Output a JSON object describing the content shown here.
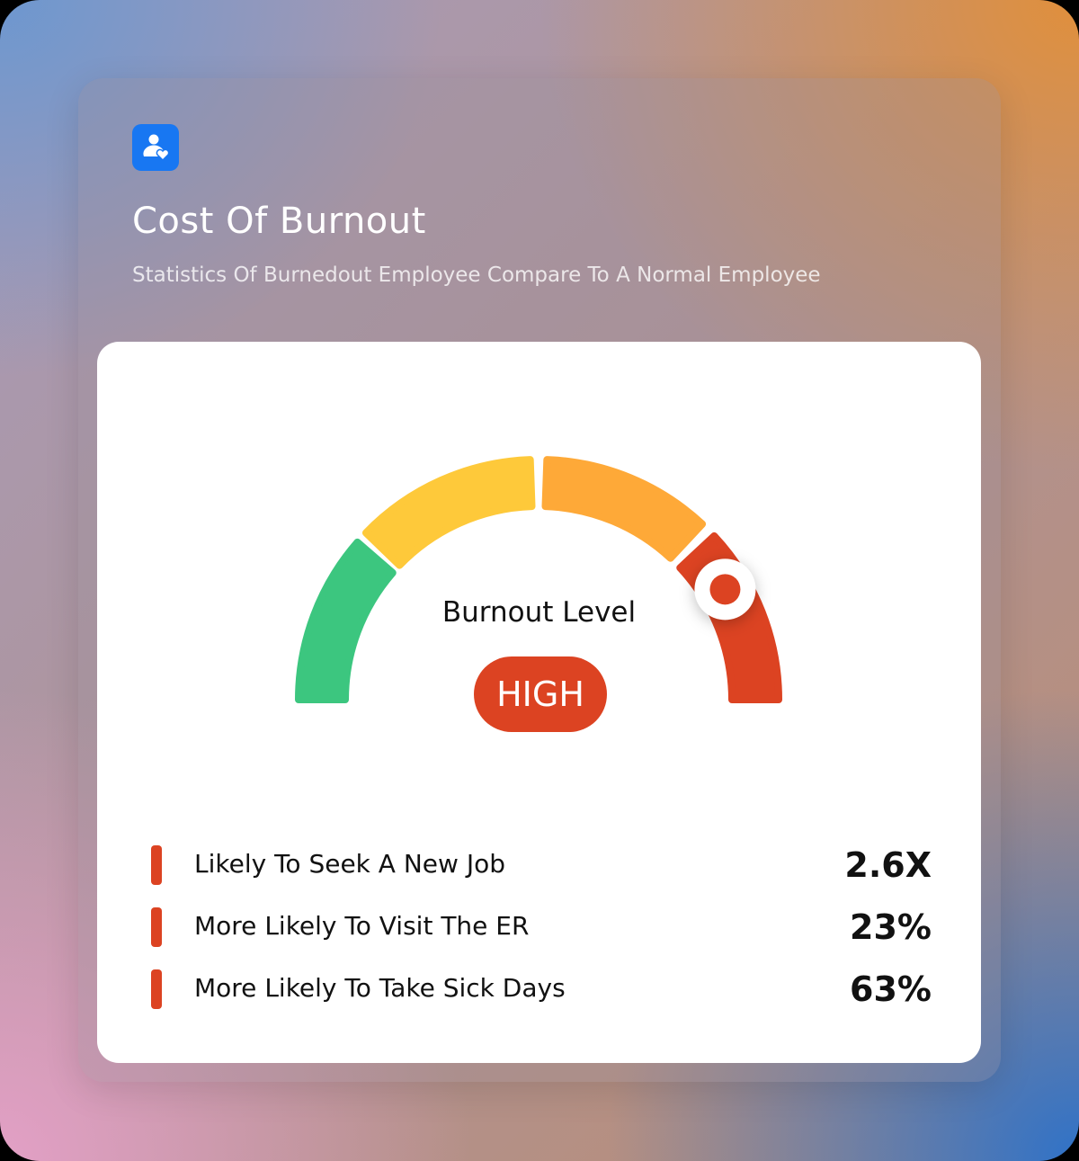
{
  "header": {
    "icon": "user-heart-icon",
    "icon_color": "#1877f2",
    "title": "Cost Of Burnout",
    "subtitle": "Statistics Of Burnedout Employee Compare To A Normal Employee"
  },
  "gauge": {
    "label": "Burnout Level",
    "level_text": "HIGH",
    "level_color": "#dc4322",
    "level_fraction": 0.83,
    "segments": [
      {
        "color": "#3cc67f"
      },
      {
        "color": "#fec93a"
      },
      {
        "color": "#fea938"
      },
      {
        "color": "#dc4322"
      }
    ]
  },
  "stats": [
    {
      "label": "Likely To Seek A New Job",
      "value": "2.6X"
    },
    {
      "label": "More Likely To Visit The ER",
      "value": "23%"
    },
    {
      "label": "More Likely To Take Sick Days",
      "value": "63%"
    }
  ]
}
